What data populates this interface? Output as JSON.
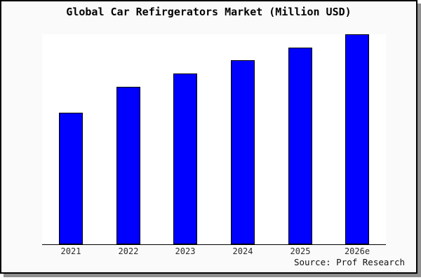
{
  "panel": {
    "background": "#fafafa",
    "border_color": "#000000",
    "shadow_color": "#8f8f8f",
    "plot_background": "#ffffff",
    "axis_color": "#000000"
  },
  "chart_data": {
    "type": "bar",
    "title": "Global Car Refirgerators Market (Million USD)",
    "categories": [
      "2021",
      "2022",
      "2023",
      "2024",
      "2025",
      "2026e"
    ],
    "values": [
      100,
      120,
      130,
      140,
      150,
      160
    ],
    "xlabel": "",
    "ylabel": "",
    "ylim": [
      0,
      160
    ],
    "bar_color": "#0000ff",
    "bar_border_color": "#000000",
    "grid": false,
    "legend": false,
    "y_axis_visible": false
  },
  "source": {
    "label": "Source: Prof Research"
  }
}
